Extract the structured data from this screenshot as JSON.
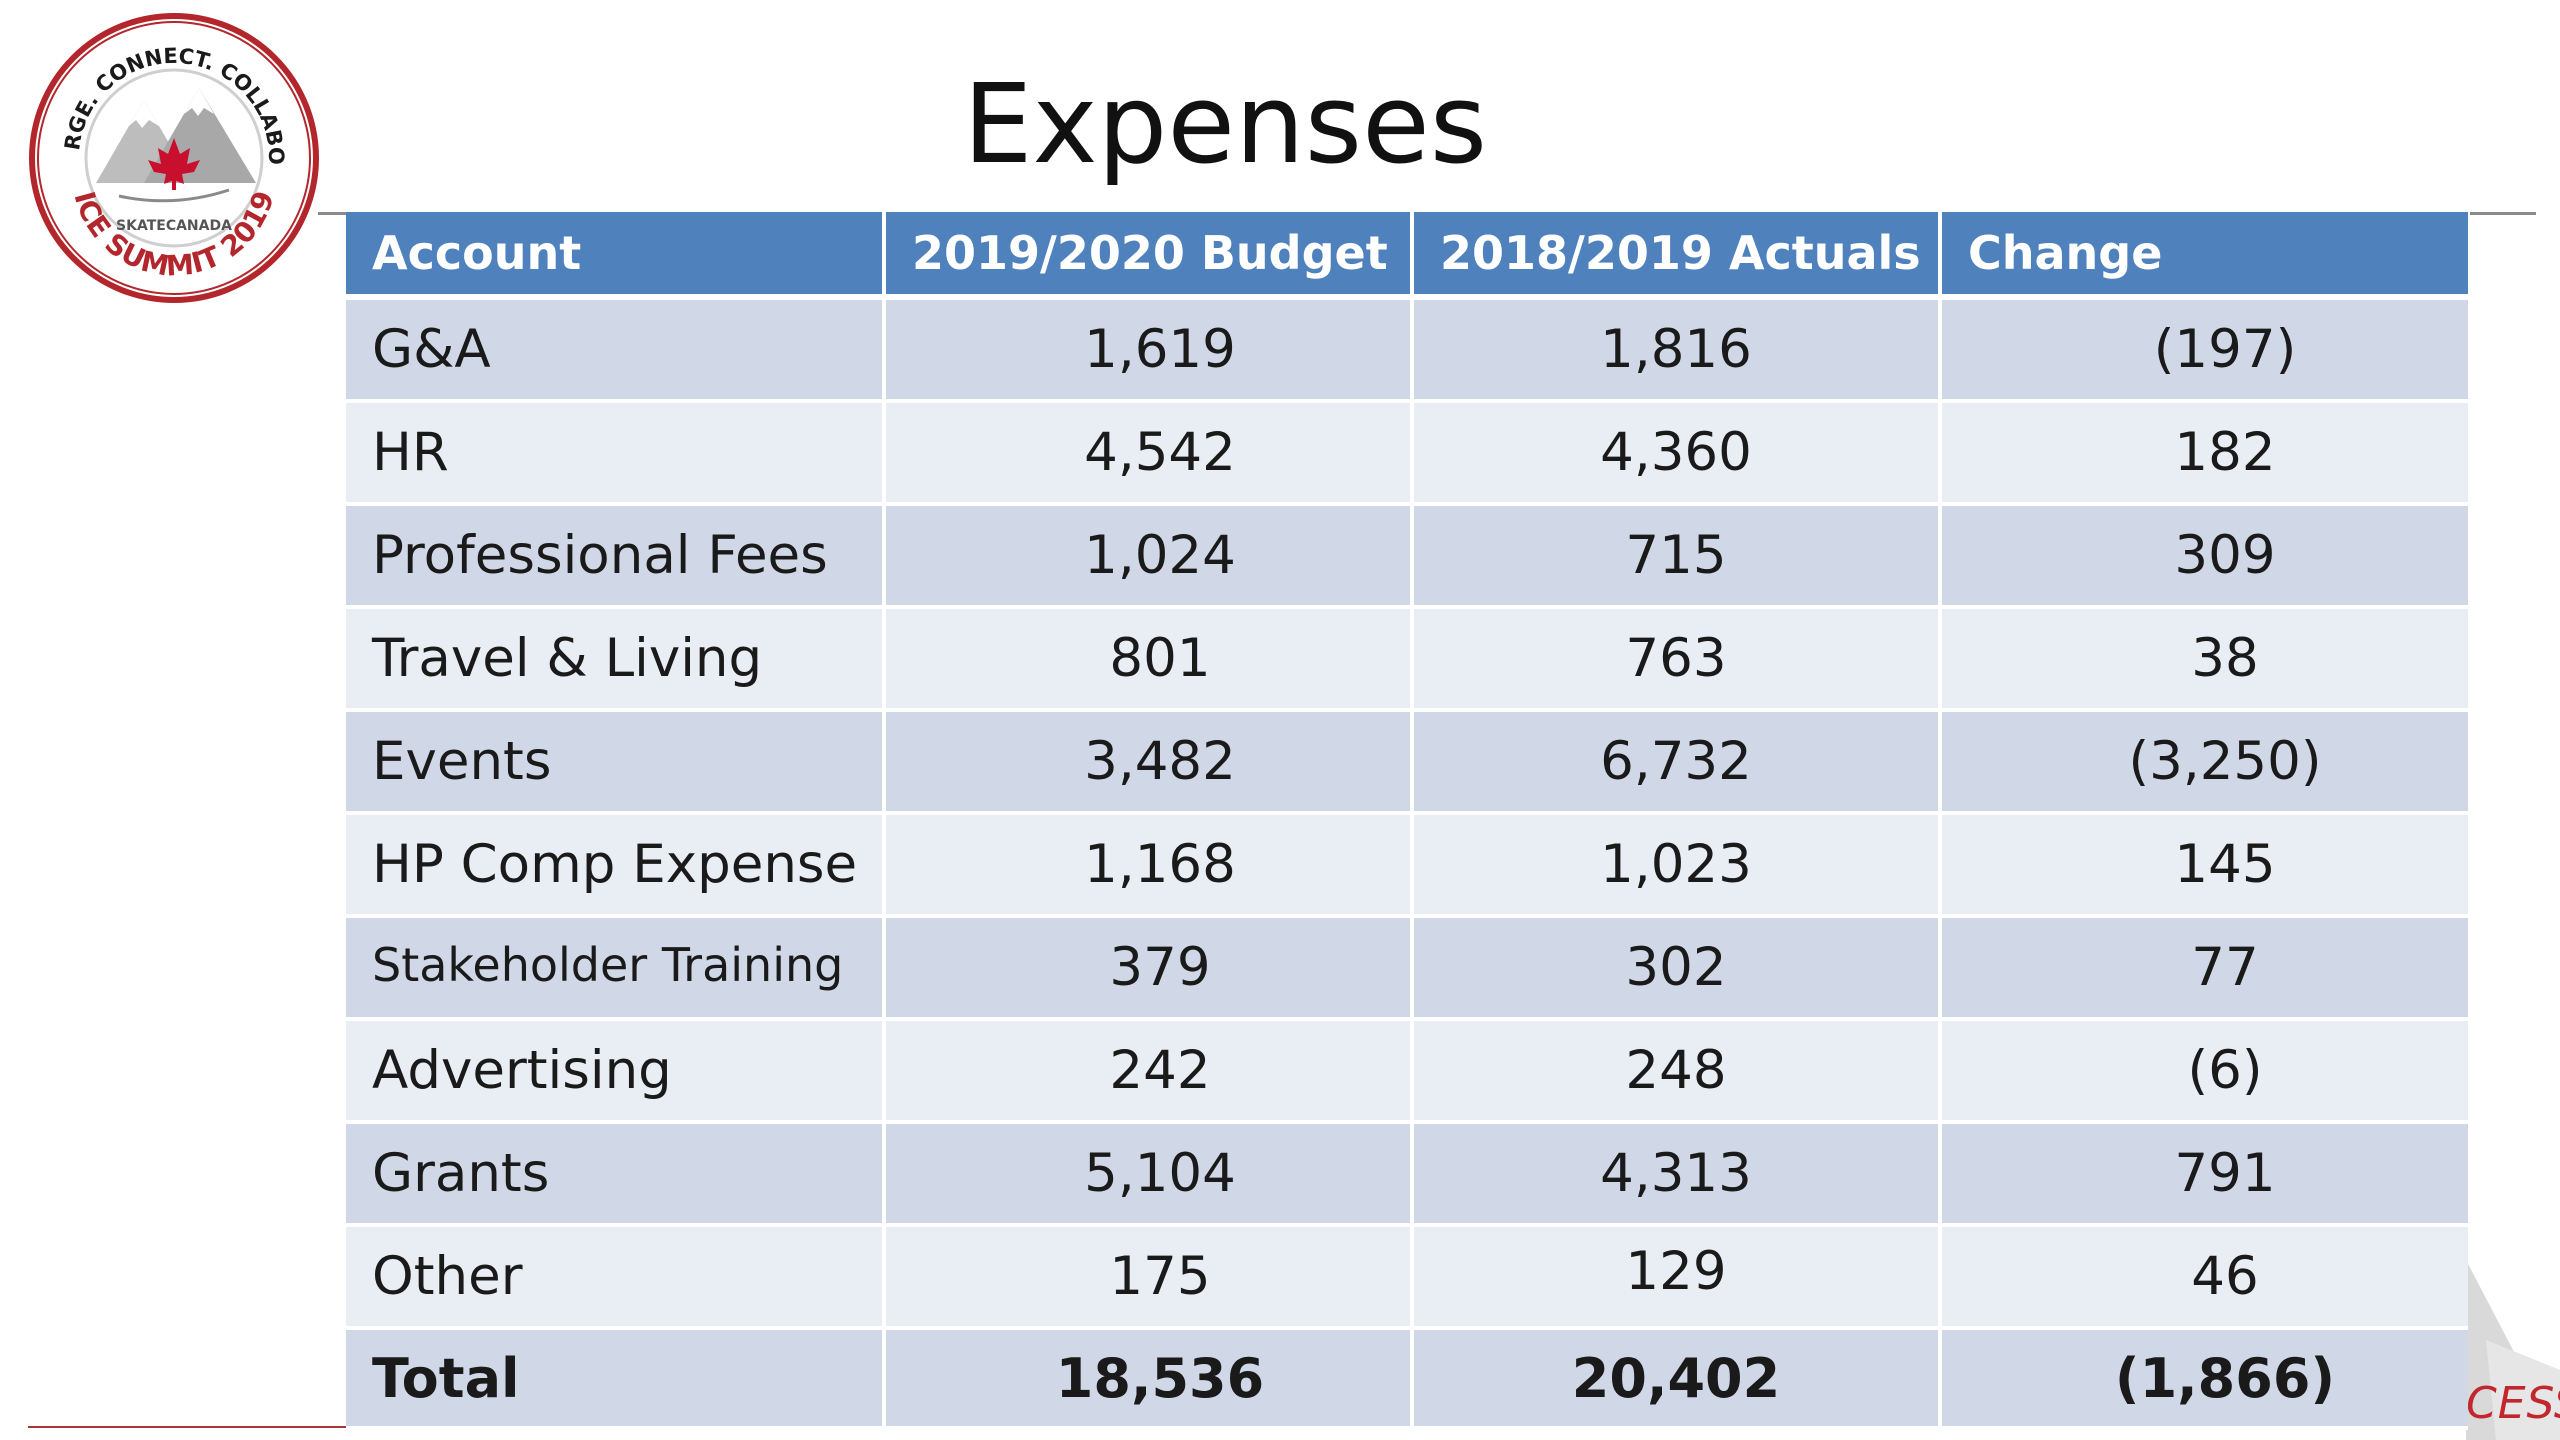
{
  "slide": {
    "title": "Expenses",
    "logo": {
      "ring_text_top": "CONVERGE. CONNECT. COLLABORATE.",
      "ring_text_bottom": "ICE SUMMIT 2019",
      "brand": "SKATECANADA",
      "ring_color": "#b3262c",
      "icon": "maple-leaf-icon"
    },
    "corner_text": "CESS"
  },
  "table": {
    "header_color": "#4f81bd",
    "row_color_odd": "#d0d8e8",
    "row_color_even": "#e9edf4",
    "columns": [
      "Account",
      "2019/2020 Budget",
      "2018/2019 Actuals",
      "Change"
    ],
    "rows": [
      {
        "account": "G&A",
        "budget": "1,619",
        "actuals": "1,816",
        "change": "(197)"
      },
      {
        "account": "HR",
        "budget": "4,542",
        "actuals": "4,360",
        "change": "182"
      },
      {
        "account": "Professional Fees",
        "budget": "1,024",
        "actuals": "715",
        "change": "309"
      },
      {
        "account": "Travel & Living",
        "budget": "801",
        "actuals": "763",
        "change": "38"
      },
      {
        "account": "Events",
        "budget": "3,482",
        "actuals": "6,732",
        "change": "(3,250)"
      },
      {
        "account": "HP Comp Expense",
        "budget": "1,168",
        "actuals": "1,023",
        "change": "145"
      },
      {
        "account": "Stakeholder Training",
        "budget": "379",
        "actuals": "302",
        "change": "77"
      },
      {
        "account": "Advertising",
        "budget": "242",
        "actuals": "248",
        "change": "(6)"
      },
      {
        "account": "Grants",
        "budget": "5,104",
        "actuals": "4,313",
        "change": "791"
      },
      {
        "account": "Other",
        "budget": "175",
        "actuals": "129",
        "change": "46"
      }
    ],
    "total": {
      "account": "Total",
      "budget": "18,536",
      "actuals": "20,402",
      "change": "(1,866)"
    }
  }
}
